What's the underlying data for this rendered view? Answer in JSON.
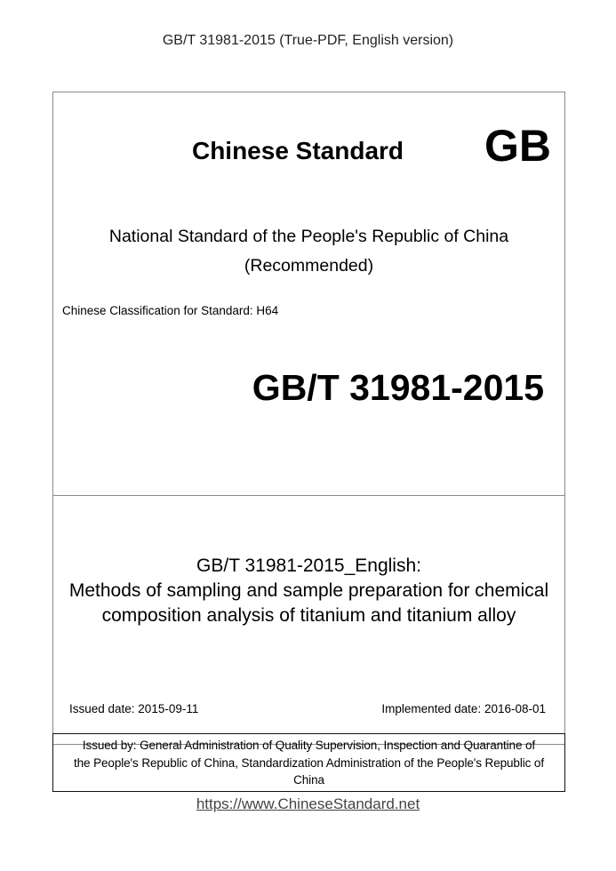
{
  "header": "GB/T 31981-2015 (True-PDF, English version)",
  "cover": {
    "heading": "Chinese Standard",
    "badge": "GB",
    "national_line1": "National Standard of the People's Republic of China",
    "national_line2": "(Recommended)",
    "classification": "Chinese Classification for Standard: H64",
    "code": "GB/T 31981-2015"
  },
  "title": {
    "line1": "GB/T 31981-2015_English:",
    "line2": "Methods of sampling and sample preparation for chemical",
    "line3": "composition analysis of titanium and titanium alloy"
  },
  "dates": {
    "issued": "Issued date: 2015-09-11",
    "implemented": "Implemented date: 2016-08-01"
  },
  "issuer": {
    "line1": "Issued by: General Administration of Quality Supervision, Inspection and Quarantine of",
    "line2": "the People's Republic of China, Standardization Administration of the People's Republic of",
    "line3": "China"
  },
  "footer_link": "https://www.ChineseStandard.net"
}
